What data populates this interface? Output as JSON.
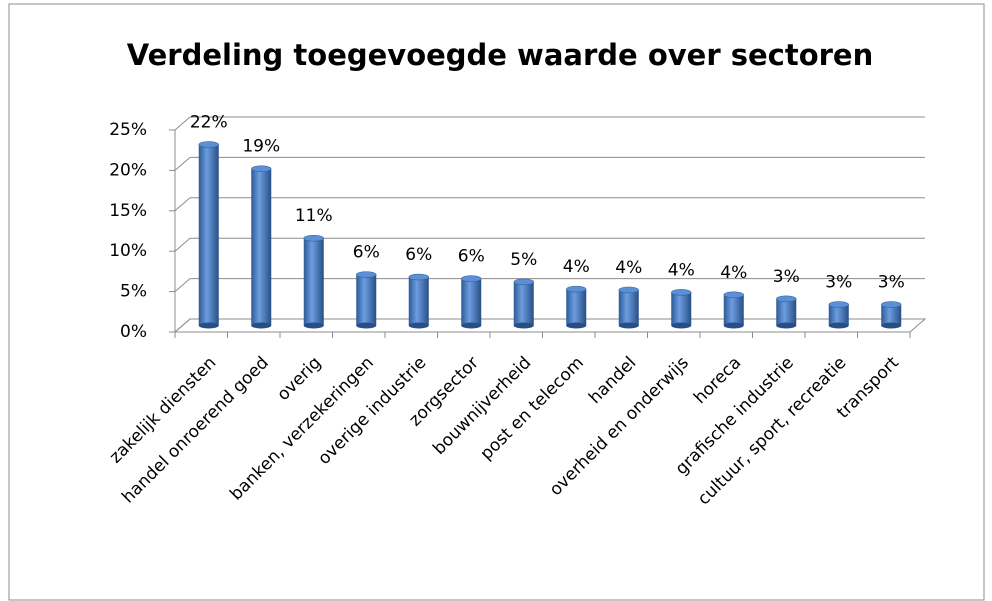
{
  "chart_data": {
    "type": "bar",
    "title": "Verdeling toegevoegde waarde over sectoren",
    "categories": [
      "zakelijk diensten",
      "handel onroerend goed",
      "overig",
      "banken, verzekeringen",
      "overige industrie",
      "zorgsector",
      "bouwnijverheid",
      "post en telecom",
      "handel",
      "overheid en onderwijs",
      "horeca",
      "grafische industrie",
      "cultuur, sport, recreatie",
      "transport"
    ],
    "values": [
      22.4,
      19.4,
      10.8,
      6.3,
      6.0,
      5.8,
      5.4,
      4.5,
      4.4,
      4.1,
      3.8,
      3.3,
      2.6,
      2.6
    ],
    "value_labels": [
      "22%",
      "19%",
      "11%",
      "6%",
      "6%",
      "6%",
      "5%",
      "4%",
      "4%",
      "4%",
      "4%",
      "3%",
      "3%",
      "3%"
    ],
    "color": "#4a7ebb",
    "ylim": [
      0,
      25
    ],
    "yticks": [
      {
        "value": 0,
        "label": "0%"
      },
      {
        "value": 5,
        "label": "5%"
      },
      {
        "value": 10,
        "label": "10%"
      },
      {
        "value": 15,
        "label": "15%"
      },
      {
        "value": 20,
        "label": "20%"
      },
      {
        "value": 25,
        "label": "25%"
      }
    ],
    "grid": true
  }
}
